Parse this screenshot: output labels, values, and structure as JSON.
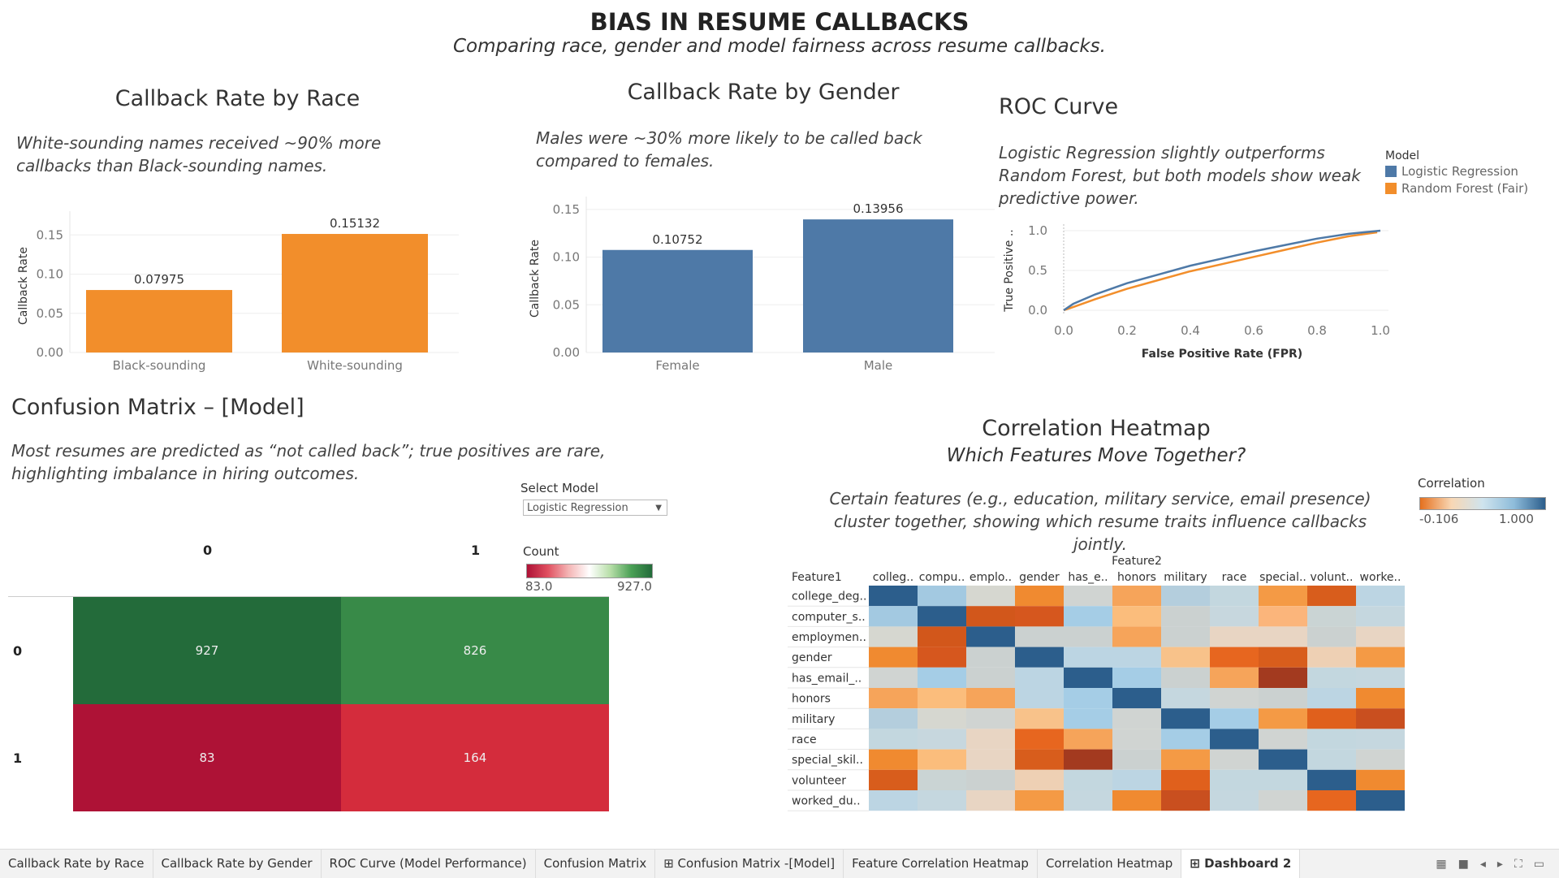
{
  "dashboard": {
    "title": "BIAS IN RESUME CALLBACKS",
    "subtitle": "Comparing race, gender and model fairness across resume callbacks."
  },
  "race_chart": {
    "title": "Callback Rate by Race",
    "caption": "White-sounding names received ~90% more callbacks than Black-sounding names.",
    "bar_color": "#f28e2b"
  },
  "gender_chart": {
    "title": "Callback Rate by Gender",
    "caption": "Males were ~30% more likely to be called back compared to females.",
    "bar_color": "#4e79a7"
  },
  "roc_chart": {
    "title": "ROC Curve",
    "caption": "Logistic Regression slightly outperforms Random Forest, but both models show weak predictive power.",
    "legend_title": "Model",
    "legend": [
      {
        "name": "Logistic Regression",
        "color": "#4e79a7"
      },
      {
        "name": "Random Forest (Fair)",
        "color": "#f28e2b"
      }
    ]
  },
  "confusion_matrix": {
    "title": "Confusion Matrix – [Model]",
    "caption": "Most resumes are predicted as “not called back”; true positives are rare, highlighting imbalance in hiring outcomes.",
    "select_label": "Select Model",
    "select_value": "Logistic Regression",
    "legend_title": "Count",
    "legend_min": "83.0",
    "legend_max": "927.0",
    "col_labels": [
      "0",
      "1"
    ],
    "row_labels": [
      "0",
      "1"
    ],
    "cell_colors": [
      [
        "#236b3a",
        "#388a48"
      ],
      [
        "#ae1236",
        "#d42c3c"
      ]
    ]
  },
  "heatmap": {
    "title": "Correlation Heatmap",
    "subtitle": "Which Features Move Together?",
    "caption": "Certain features (e.g., education, military service, email presence) cluster together, showing which resume traits influence callbacks jointly.",
    "legend_title": "Correlation",
    "legend_min": "-0.106",
    "legend_max": "1.000",
    "row_header": "Feature1",
    "col_header": "Feature2",
    "cols": [
      "colleg..",
      "compu..",
      "emplo..",
      "gender",
      "has_e..",
      "honors",
      "military",
      "race",
      "special..",
      "volunt..",
      "worke.."
    ],
    "rows": [
      "college_deg..",
      "computer_s..",
      "employmen..",
      "gender",
      "has_email_..",
      "honors",
      "military",
      "race",
      "special_skil..",
      "volunteer",
      "worked_du.."
    ]
  },
  "tabs": [
    {
      "label": "Callback Rate by Race",
      "icon": ""
    },
    {
      "label": "Callback Rate by Gender",
      "icon": ""
    },
    {
      "label": "ROC Curve (Model Performance)",
      "icon": ""
    },
    {
      "label": "Confusion Matrix",
      "icon": ""
    },
    {
      "label": "⊞ Confusion Matrix -[Model]",
      "icon": "dashboard-icon"
    },
    {
      "label": "Feature Correlation Heatmap",
      "icon": ""
    },
    {
      "label": "Correlation Heatmap",
      "icon": ""
    },
    {
      "label": "⊞ Dashboard 2",
      "icon": "dashboard-icon",
      "active": true
    }
  ],
  "chart_data": [
    {
      "type": "bar",
      "title": "Callback Rate by Race",
      "categories": [
        "Black-sounding",
        "White-sounding"
      ],
      "values": [
        0.07975,
        0.15132
      ],
      "data_labels": [
        "0.07975",
        "0.15132"
      ],
      "ylabel": "Callback Rate",
      "ylim": [
        0,
        0.17
      ],
      "yticks": [
        "0.00",
        "0.05",
        "0.10",
        "0.15"
      ]
    },
    {
      "type": "bar",
      "title": "Callback Rate by Gender",
      "categories": [
        "Female",
        "Male"
      ],
      "values": [
        0.10752,
        0.13956
      ],
      "data_labels": [
        "0.10752",
        "0.13956"
      ],
      "ylabel": "Callback Rate",
      "ylim": [
        0,
        0.155
      ],
      "yticks": [
        "0.00",
        "0.05",
        "0.10",
        "0.15"
      ]
    },
    {
      "type": "line",
      "title": "ROC Curve",
      "xlabel": "False Positive Rate (FPR)",
      "ylabel": "True Positive ..",
      "xlim": [
        0,
        1
      ],
      "ylim": [
        0,
        1
      ],
      "xticks": [
        "0.0",
        "0.2",
        "0.4",
        "0.6",
        "0.8",
        "1.0"
      ],
      "yticks": [
        "0.0",
        "0.5",
        "1.0"
      ],
      "series": [
        {
          "name": "Logistic Regression",
          "x": [
            0,
            0.03,
            0.1,
            0.2,
            0.3,
            0.4,
            0.5,
            0.6,
            0.7,
            0.8,
            0.9,
            1.0
          ],
          "y": [
            0,
            0.08,
            0.2,
            0.34,
            0.45,
            0.56,
            0.65,
            0.74,
            0.82,
            0.9,
            0.96,
            1.0
          ]
        },
        {
          "name": "Random Forest (Fair)",
          "x": [
            0,
            0.03,
            0.1,
            0.2,
            0.3,
            0.4,
            0.5,
            0.6,
            0.7,
            0.8,
            0.9,
            0.99
          ],
          "y": [
            0,
            0.04,
            0.14,
            0.27,
            0.38,
            0.49,
            0.58,
            0.67,
            0.76,
            0.85,
            0.93,
            0.98
          ]
        }
      ]
    },
    {
      "type": "heatmap",
      "title": "Confusion Matrix – [Model]",
      "x": [
        "0",
        "1"
      ],
      "y": [
        "0",
        "1"
      ],
      "values": [
        [
          927,
          826
        ],
        [
          83,
          164
        ]
      ]
    },
    {
      "type": "heatmap",
      "title": "Correlation Heatmap",
      "colors": [
        [
          "#2c5e8c",
          "#a3c9e1",
          "#d6d7d0",
          "#f08a30",
          "#d0d4d2",
          "#f6a45a",
          "#b4cedd",
          "#c3d7df",
          "#f49a45",
          "#d85d1c",
          "#bcd5e3"
        ],
        [
          "#a3c9e1",
          "#2c5e8c",
          "#d2571b",
          "#d6571e",
          "#a5cde6",
          "#fbbd7c",
          "#cbd1d0",
          "#c7d7de",
          "#fbb57b",
          "#cad4d4",
          "#c5d7df"
        ],
        [
          "#d6d7d0",
          "#d2571b",
          "#2c5e8c",
          "#cbd1d0",
          "#cbd1d0",
          "#f6a45a",
          "#cbd1d0",
          "#e8d5c3",
          "#e8d5c3",
          "#cbd1d0",
          "#e8d5c3"
        ],
        [
          "#f08a30",
          "#d6571e",
          "#cbd1d0",
          "#2c5e8c",
          "#bcd5e3",
          "#bcd5e3",
          "#f8c28a",
          "#e7661f",
          "#d85d1c",
          "#eed0b4",
          "#f49a45"
        ],
        [
          "#d0d4d2",
          "#a5cde6",
          "#cbd1d0",
          "#bcd5e3",
          "#2c5e8c",
          "#a5cde6",
          "#cbd1d0",
          "#f6a45a",
          "#a33a1f",
          "#c3d7df",
          "#c5d7df"
        ],
        [
          "#f6a45a",
          "#fbbd7c",
          "#f6a45a",
          "#bcd5e3",
          "#a5cde6",
          "#2c5e8c",
          "#c5d7df",
          "#d0d4d2",
          "#cbd1d0",
          "#bcd5e3",
          "#f08a30"
        ],
        [
          "#b4cedd",
          "#d6d7d0",
          "#d0d4d2",
          "#f8c28a",
          "#a5cde6",
          "#d0d4d2",
          "#2c5e8c",
          "#a5cde6",
          "#f49a45",
          "#e0601c",
          "#c94f1f"
        ],
        [
          "#c3d7df",
          "#c7d7de",
          "#e8d5c3",
          "#e7661f",
          "#f6a45a",
          "#d0d4d2",
          "#a5cde6",
          "#2c5e8c",
          "#d0d4d2",
          "#c3d7df",
          "#c5d7df"
        ],
        [
          "#f08a30",
          "#fbbd7c",
          "#e8d5c3",
          "#d85d1c",
          "#a33a1f",
          "#cbd1d0",
          "#f49a45",
          "#d0d4d2",
          "#2c5e8c",
          "#c3d7df",
          "#d0d4d2"
        ],
        [
          "#d85d1c",
          "#cad4d4",
          "#cbd1d0",
          "#eed0b4",
          "#c3d7df",
          "#bcd5e3",
          "#e0601c",
          "#c3d7df",
          "#c3d7df",
          "#2c5e8c",
          "#f08a30"
        ],
        [
          "#bcd5e3",
          "#c5d7df",
          "#e8d5c3",
          "#f49a45",
          "#c5d7df",
          "#f08a30",
          "#c94f1f",
          "#c5d7df",
          "#d0d4d2",
          "#e7661f",
          "#2c5e8c"
        ]
      ]
    }
  ]
}
